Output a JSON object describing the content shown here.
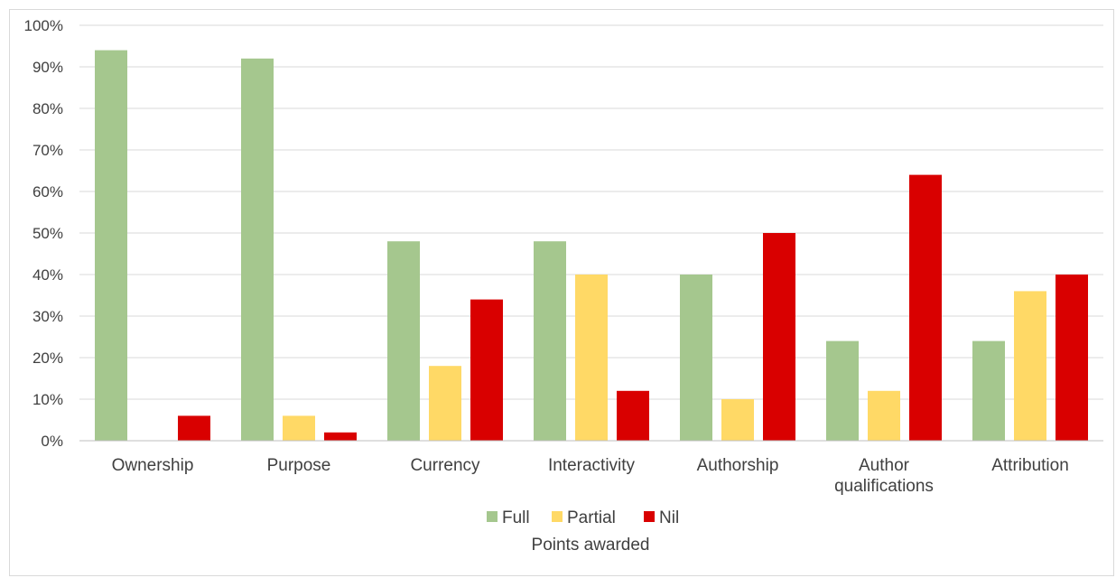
{
  "chart_data": {
    "type": "bar",
    "categories": [
      "Ownership",
      "Purpose",
      "Currency",
      "Interactivity",
      "Authorship",
      "Author qualifications",
      "Attribution"
    ],
    "category_lines": [
      [
        "Ownership"
      ],
      [
        "Purpose"
      ],
      [
        "Currency"
      ],
      [
        "Interactivity"
      ],
      [
        "Authorship"
      ],
      [
        "Author",
        "qualifications"
      ],
      [
        "Attribution"
      ]
    ],
    "series": [
      {
        "name": "Full",
        "color": "#a5c78e",
        "values": [
          94,
          92,
          48,
          48,
          40,
          24,
          24
        ]
      },
      {
        "name": "Partial",
        "color": "#ffd966",
        "values": [
          0,
          6,
          18,
          40,
          10,
          12,
          36
        ]
      },
      {
        "name": "Nil",
        "color": "#d90000",
        "values": [
          6,
          2,
          34,
          12,
          50,
          64,
          40
        ]
      }
    ],
    "y_ticks": [
      "0%",
      "10%",
      "20%",
      "30%",
      "40%",
      "50%",
      "60%",
      "70%",
      "80%",
      "90%",
      "100%"
    ],
    "ylim": [
      0,
      100
    ],
    "xlabel": "Points awarded",
    "ylabel": "",
    "title": "",
    "grid": true,
    "legend_position": "bottom"
  }
}
